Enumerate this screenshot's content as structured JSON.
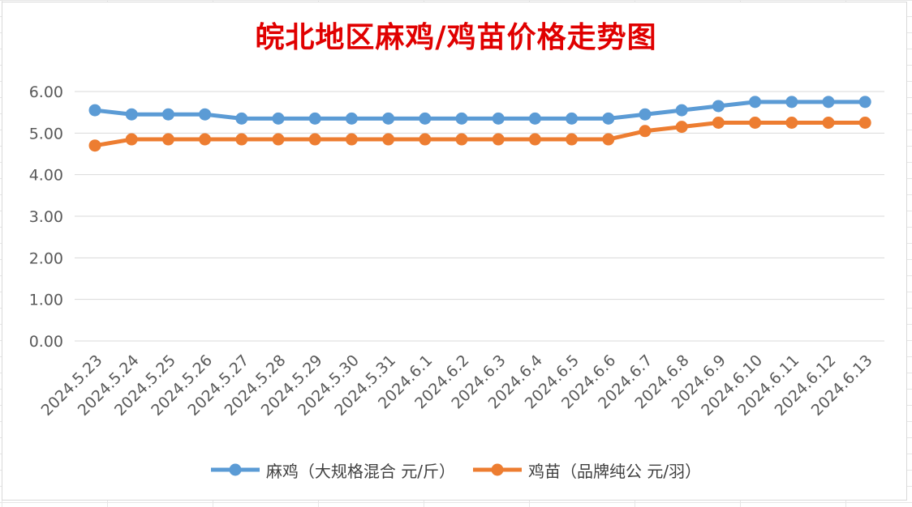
{
  "chart_data": {
    "type": "line",
    "title": "皖北地区麻鸡/鸡苗价格走势图",
    "categories": [
      "2024.5.23",
      "2024.5.24",
      "2024.5.25",
      "2024.5.26",
      "2024.5.27",
      "2024.5.28",
      "2024.5.29",
      "2024.5.30",
      "2024.5.31",
      "2024.6.1",
      "2024.6.2",
      "2024.6.3",
      "2024.6.4",
      "2024.6.5",
      "2024.6.6",
      "2024.6.7",
      "2024.6.8",
      "2024.6.9",
      "2024.6.10",
      "2024.6.11",
      "2024.6.12",
      "2024.6.13"
    ],
    "series": [
      {
        "name": "麻鸡（大规格混合 元/斤）",
        "color": "#5b9bd5",
        "values": [
          5.55,
          5.45,
          5.45,
          5.45,
          5.35,
          5.35,
          5.35,
          5.35,
          5.35,
          5.35,
          5.35,
          5.35,
          5.35,
          5.35,
          5.35,
          5.45,
          5.55,
          5.65,
          5.75,
          5.75,
          5.75,
          5.75
        ]
      },
      {
        "name": "鸡苗（品牌纯公 元/羽）",
        "color": "#ed7d31",
        "values": [
          4.7,
          4.85,
          4.85,
          4.85,
          4.85,
          4.85,
          4.85,
          4.85,
          4.85,
          4.85,
          4.85,
          4.85,
          4.85,
          4.85,
          4.85,
          5.05,
          5.15,
          5.25,
          5.25,
          5.25,
          5.25,
          5.25
        ]
      }
    ],
    "ylim": [
      0,
      6
    ],
    "yticks": [
      "0.00",
      "1.00",
      "2.00",
      "3.00",
      "4.00",
      "5.00",
      "6.00"
    ],
    "grid": true,
    "legend_position": "bottom"
  }
}
